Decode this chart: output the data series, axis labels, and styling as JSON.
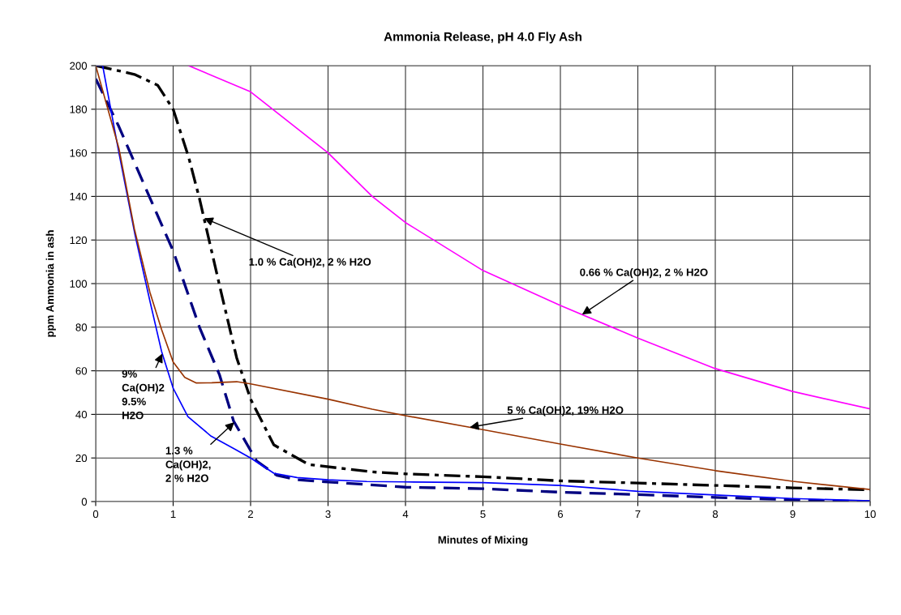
{
  "chart_data": {
    "type": "line",
    "title": "Ammonia Release, pH 4.0 Fly Ash",
    "xlabel": "Minutes of Mixing",
    "ylabel": "ppm Ammonia in ash",
    "xlim": [
      0,
      10
    ],
    "xticks": [
      0,
      1,
      2,
      3,
      4,
      5,
      6,
      7,
      8,
      9,
      10
    ],
    "ylim": [
      0,
      200
    ],
    "yticks": [
      0,
      20,
      40,
      60,
      80,
      100,
      120,
      140,
      160,
      180,
      200
    ],
    "grid": true,
    "legend": false,
    "marker": "none",
    "series": [
      {
        "color": "#ff00ff",
        "line_style": "solid",
        "x": [
          1.2,
          2,
          3,
          3.57,
          4,
          5,
          6,
          7,
          8,
          9,
          10
        ],
        "values": [
          200,
          188,
          160,
          140,
          128,
          106,
          90,
          75,
          61,
          50.5,
          42.5
        ]
      },
      {
        "color": "#000000",
        "line_style": "dashdot",
        "x": [
          0,
          0.5,
          0.8,
          1,
          1.2,
          1.34,
          1.6,
          1.82,
          2,
          2.3,
          2.75,
          3.57,
          4,
          5,
          6,
          7,
          8,
          9,
          10
        ],
        "values": [
          200,
          196,
          191,
          180,
          158,
          139,
          99,
          66,
          47,
          26,
          17,
          13.6,
          12.7,
          11.4,
          9.5,
          8.5,
          7.4,
          6.3,
          5.4
        ]
      },
      {
        "color": "#000080",
        "line_style": "dashed",
        "x": [
          0,
          0.3,
          0.63,
          1,
          1.34,
          1.6,
          1.78,
          2.08,
          2.34,
          2.6,
          3,
          4,
          5,
          6,
          7,
          8,
          9,
          10
        ],
        "values": [
          194,
          172,
          145,
          115,
          80,
          58,
          37,
          18.5,
          12,
          10,
          9,
          6.6,
          5.9,
          4.3,
          3.2,
          1.9,
          0.8,
          0
        ]
      },
      {
        "color": "#0000ff",
        "line_style": "solid",
        "x": [
          0,
          0.09,
          0.3,
          0.51,
          0.7,
          0.85,
          1,
          1.19,
          1.49,
          1.8,
          2,
          2.3,
          2.6,
          3,
          3.5,
          4,
          5,
          6,
          7,
          8,
          9,
          10
        ],
        "values": [
          200,
          200,
          160,
          122,
          92,
          69,
          52,
          39,
          30,
          24,
          20,
          13,
          11,
          10,
          9.2,
          9,
          8.7,
          7.4,
          4.7,
          3,
          1.4,
          0.3
        ]
      },
      {
        "color": "#993300",
        "line_style": "solid",
        "x": [
          0,
          0.3,
          0.5,
          0.7,
          0.85,
          1,
          1.15,
          1.3,
          1.5,
          1.82,
          2,
          3,
          3.57,
          4,
          5,
          6,
          7,
          8,
          9,
          10
        ],
        "values": [
          200,
          162,
          125,
          96,
          79,
          64,
          57,
          54.4,
          54.5,
          55,
          54,
          47,
          42.4,
          39.4,
          33,
          26.4,
          20,
          14.2,
          9.3,
          5.5
        ]
      }
    ],
    "annotations": [
      {
        "text": "1.0 % Ca(OH)2, 2 % H2O",
        "x": 1.4,
        "y": 130
      },
      {
        "text": "0.66 % Ca(OH)2, 2 % H2O",
        "x": 6.28,
        "y": 85.8
      },
      {
        "text": "5 % Ca(OH)2, 19% H2O",
        "x": 4.83,
        "y": 34.1
      },
      {
        "text": "9%\nCa(OH)2\n9.5%\nH2O",
        "x": 0.86,
        "y": 67.9
      },
      {
        "text": "1.3 %\nCa(OH)2,\n2 % H2O",
        "x": 1.79,
        "y": 36.4
      }
    ]
  }
}
